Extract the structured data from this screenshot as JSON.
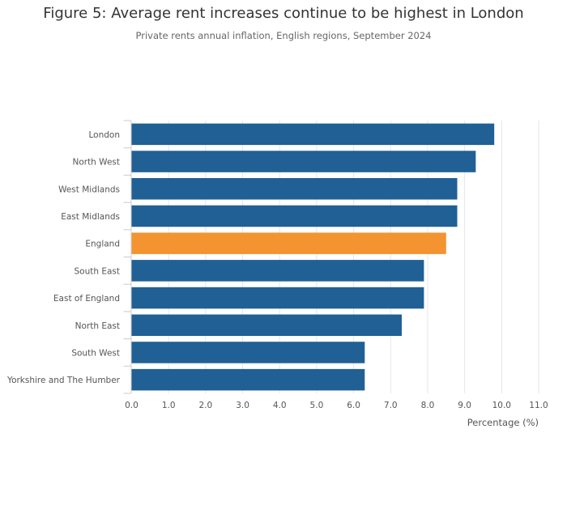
{
  "title": "Figure 5: Average rent increases continue to be highest in London",
  "subtitle": "Private rents annual inflation, English regions, September 2024",
  "colors": {
    "region_bar": "#206095",
    "england_bar": "#f39431",
    "grid": "#e6e6e6",
    "axis": "#cccccc"
  },
  "chart_data": {
    "type": "bar",
    "orientation": "horizontal",
    "categories": [
      "London",
      "North West",
      "West Midlands",
      "East Midlands",
      "England",
      "South East",
      "East of England",
      "North East",
      "South West",
      "Yorkshire and The Humber"
    ],
    "values": [
      9.8,
      9.3,
      8.8,
      8.8,
      8.5,
      7.9,
      7.9,
      7.3,
      6.3,
      6.3
    ],
    "highlight_category": "England",
    "xlabel": "Percentage (%)",
    "xlim": [
      0,
      11
    ],
    "xticks": [
      "0.0",
      "1.0",
      "2.0",
      "3.0",
      "4.0",
      "5.0",
      "6.0",
      "7.0",
      "8.0",
      "9.0",
      "10.0",
      "11.0"
    ],
    "grid": true
  }
}
